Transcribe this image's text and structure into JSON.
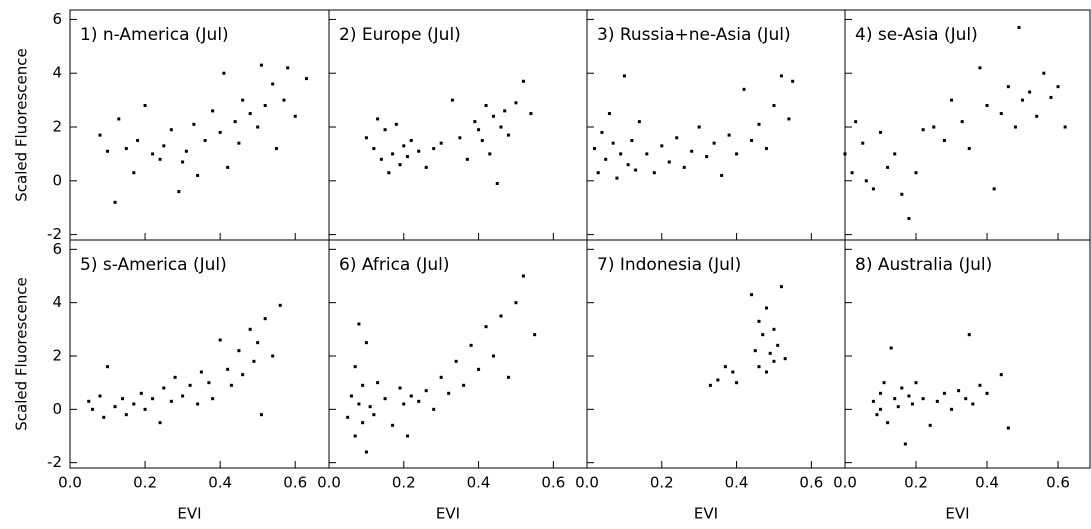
{
  "chart_data": [
    {
      "type": "scatter",
      "title": "1) n-America  (Jul)",
      "ylabel": "Scaled Fluorescence",
      "x": [
        0.08,
        0.1,
        0.12,
        0.13,
        0.15,
        0.17,
        0.18,
        0.2,
        0.22,
        0.24,
        0.25,
        0.27,
        0.29,
        0.3,
        0.31,
        0.33,
        0.34,
        0.36,
        0.38,
        0.4,
        0.41,
        0.42,
        0.44,
        0.45,
        0.46,
        0.48,
        0.5,
        0.51,
        0.52,
        0.54,
        0.55,
        0.57,
        0.58,
        0.6,
        0.63
      ],
      "y": [
        1.7,
        1.1,
        -0.8,
        2.3,
        1.2,
        0.3,
        1.5,
        2.8,
        1.0,
        0.8,
        1.3,
        1.9,
        -0.4,
        0.7,
        1.1,
        2.1,
        0.2,
        1.5,
        2.6,
        1.8,
        4.0,
        0.5,
        2.2,
        1.4,
        3.0,
        2.5,
        2.0,
        4.3,
        2.8,
        3.6,
        1.2,
        3.0,
        4.2,
        2.4,
        3.8
      ],
      "xlim": [
        0,
        0.69
      ],
      "ylim": [
        -2.2,
        6.35
      ],
      "xticks": [
        {
          "value": 0,
          "label": "0.0"
        },
        0.2,
        0.4,
        0.6
      ],
      "yticks": [
        -2,
        0,
        2,
        4,
        6
      ],
      "color": "#000000"
    },
    {
      "type": "scatter",
      "title": "2) Europe  (Jul)",
      "x": [
        0.1,
        0.12,
        0.13,
        0.14,
        0.15,
        0.16,
        0.17,
        0.18,
        0.19,
        0.2,
        0.21,
        0.22,
        0.24,
        0.26,
        0.28,
        0.3,
        0.33,
        0.35,
        0.37,
        0.39,
        0.4,
        0.41,
        0.42,
        0.43,
        0.44,
        0.45,
        0.46,
        0.47,
        0.48,
        0.5,
        0.52,
        0.54
      ],
      "y": [
        1.6,
        1.2,
        2.3,
        0.8,
        1.9,
        0.3,
        1.0,
        2.1,
        0.6,
        1.3,
        0.9,
        1.5,
        1.1,
        0.5,
        1.2,
        1.4,
        3.0,
        1.6,
        0.8,
        2.2,
        1.9,
        1.5,
        2.8,
        1.0,
        2.4,
        -0.1,
        2.0,
        2.6,
        1.7,
        2.9,
        3.7,
        2.5
      ],
      "xlim": [
        0,
        0.69
      ],
      "ylim": [
        -2.2,
        6.35
      ],
      "xticks": [
        {
          "value": 0,
          "label": "0.0"
        },
        0.2,
        0.4,
        0.6
      ],
      "yticks": [
        -2,
        0,
        2,
        4,
        6
      ],
      "color": "#000000"
    },
    {
      "type": "scatter",
      "title": "3) Russia+ne-Asia  (Jul)",
      "x": [
        0.02,
        0.03,
        0.04,
        0.05,
        0.06,
        0.07,
        0.08,
        0.09,
        0.1,
        0.11,
        0.12,
        0.13,
        0.14,
        0.16,
        0.18,
        0.2,
        0.22,
        0.24,
        0.26,
        0.28,
        0.3,
        0.32,
        0.34,
        0.36,
        0.38,
        0.4,
        0.42,
        0.44,
        0.46,
        0.48,
        0.5,
        0.52,
        0.54,
        0.55
      ],
      "y": [
        1.2,
        0.3,
        1.8,
        0.8,
        2.5,
        1.4,
        0.1,
        1.0,
        3.9,
        0.6,
        1.5,
        0.4,
        2.2,
        1.0,
        0.3,
        1.3,
        0.7,
        1.6,
        0.5,
        1.1,
        2.0,
        0.9,
        1.4,
        0.2,
        1.7,
        1.0,
        3.4,
        1.5,
        2.1,
        1.2,
        2.8,
        3.9,
        2.3,
        3.7
      ],
      "xlim": [
        0,
        0.69
      ],
      "ylim": [
        -2.2,
        6.35
      ],
      "xticks": [
        {
          "value": 0,
          "label": "0.0"
        },
        0.2,
        0.4,
        0.6
      ],
      "yticks": [
        -2,
        0,
        2,
        4,
        6
      ],
      "color": "#000000"
    },
    {
      "type": "scatter",
      "title": "4) se-Asia  (Jul)",
      "x": [
        0.0,
        0.02,
        0.03,
        0.05,
        0.06,
        0.08,
        0.1,
        0.12,
        0.14,
        0.16,
        0.18,
        0.2,
        0.22,
        0.25,
        0.28,
        0.3,
        0.33,
        0.35,
        0.38,
        0.4,
        0.42,
        0.44,
        0.46,
        0.48,
        0.49,
        0.5,
        0.52,
        0.54,
        0.56,
        0.58,
        0.6,
        0.62
      ],
      "y": [
        1.0,
        0.3,
        2.2,
        1.4,
        0.0,
        -0.3,
        1.8,
        0.5,
        1.0,
        -0.5,
        -1.4,
        0.3,
        1.9,
        2.0,
        1.5,
        3.0,
        2.2,
        1.2,
        4.2,
        2.8,
        -0.3,
        2.5,
        3.5,
        2.0,
        5.7,
        3.0,
        3.3,
        2.4,
        4.0,
        3.1,
        3.5,
        2.0
      ],
      "xlim": [
        0,
        0.69
      ],
      "ylim": [
        -2.2,
        6.35
      ],
      "xticks": [
        {
          "value": 0,
          "label": "0.0"
        },
        0.2,
        0.4,
        0.6
      ],
      "yticks": [
        -2,
        0,
        2,
        4,
        6
      ],
      "color": "#000000"
    },
    {
      "type": "scatter",
      "title": "5) s-America  (Jul)",
      "ylabel": "Scaled Fluorescence",
      "xlabel": "EVI",
      "x": [
        0.05,
        0.06,
        0.08,
        0.09,
        0.1,
        0.12,
        0.14,
        0.15,
        0.17,
        0.19,
        0.2,
        0.22,
        0.24,
        0.25,
        0.27,
        0.28,
        0.3,
        0.32,
        0.34,
        0.35,
        0.37,
        0.38,
        0.4,
        0.42,
        0.43,
        0.45,
        0.46,
        0.48,
        0.49,
        0.5,
        0.51,
        0.52,
        0.54,
        0.56
      ],
      "y": [
        0.3,
        0.0,
        0.5,
        -0.3,
        1.6,
        0.1,
        0.4,
        -0.2,
        0.2,
        0.6,
        0.0,
        0.4,
        -0.5,
        0.8,
        0.3,
        1.2,
        0.5,
        0.9,
        0.2,
        1.4,
        1.0,
        0.4,
        2.6,
        1.5,
        0.9,
        2.2,
        1.3,
        3.0,
        1.8,
        2.5,
        -0.2,
        3.4,
        2.0,
        3.9
      ],
      "xlim": [
        0,
        0.69
      ],
      "ylim": [
        -2.2,
        6.35
      ],
      "xticks": [
        {
          "value": 0,
          "label": "0.0"
        },
        0.2,
        0.4,
        0.6
      ],
      "yticks": [
        -2,
        0,
        2,
        4,
        6
      ],
      "color": "#000000"
    },
    {
      "type": "scatter",
      "title": "6) Africa  (Jul)",
      "xlabel": "EVI",
      "x": [
        0.05,
        0.06,
        0.07,
        0.07,
        0.08,
        0.08,
        0.09,
        0.09,
        0.1,
        0.1,
        0.11,
        0.12,
        0.13,
        0.15,
        0.17,
        0.19,
        0.2,
        0.21,
        0.22,
        0.24,
        0.26,
        0.28,
        0.3,
        0.32,
        0.34,
        0.36,
        0.38,
        0.4,
        0.42,
        0.44,
        0.46,
        0.48,
        0.5,
        0.52,
        0.55
      ],
      "y": [
        -0.3,
        0.5,
        -1.0,
        1.6,
        0.2,
        3.2,
        -0.5,
        0.9,
        -1.6,
        2.5,
        0.1,
        -0.2,
        1.0,
        0.4,
        -0.6,
        0.8,
        0.2,
        -1.0,
        0.5,
        0.3,
        0.7,
        0.0,
        1.2,
        0.6,
        1.8,
        0.9,
        2.4,
        1.5,
        3.1,
        2.0,
        3.5,
        1.2,
        4.0,
        5.0,
        2.8
      ],
      "xlim": [
        0,
        0.69
      ],
      "ylim": [
        -2.2,
        6.35
      ],
      "xticks": [
        {
          "value": 0,
          "label": "0.0"
        },
        0.2,
        0.4,
        0.6
      ],
      "yticks": [
        -2,
        0,
        2,
        4,
        6
      ],
      "color": "#000000"
    },
    {
      "type": "scatter",
      "title": "7) Indonesia  (Jul)",
      "xlabel": "EVI",
      "x": [
        0.33,
        0.35,
        0.37,
        0.39,
        0.4,
        0.44,
        0.45,
        0.46,
        0.46,
        0.47,
        0.48,
        0.48,
        0.49,
        0.5,
        0.5,
        0.51,
        0.52,
        0.53
      ],
      "y": [
        0.9,
        1.1,
        1.6,
        1.4,
        1.0,
        4.3,
        2.2,
        3.3,
        1.6,
        2.8,
        3.8,
        1.4,
        2.1,
        3.0,
        1.8,
        2.4,
        4.6,
        1.9
      ],
      "xlim": [
        0,
        0.69
      ],
      "ylim": [
        -2.2,
        6.35
      ],
      "xticks": [
        {
          "value": 0,
          "label": "0.0"
        },
        0.2,
        0.4,
        0.6
      ],
      "yticks": [
        -2,
        0,
        2,
        4,
        6
      ],
      "color": "#000000"
    },
    {
      "type": "scatter",
      "title": "8) Australia  (Jul)",
      "xlabel": "EVI",
      "x": [
        0.08,
        0.09,
        0.1,
        0.1,
        0.11,
        0.12,
        0.13,
        0.14,
        0.15,
        0.16,
        0.17,
        0.18,
        0.19,
        0.2,
        0.22,
        0.24,
        0.26,
        0.28,
        0.3,
        0.32,
        0.34,
        0.35,
        0.36,
        0.38,
        0.4,
        0.44,
        0.46
      ],
      "y": [
        0.3,
        -0.2,
        0.6,
        0.0,
        1.0,
        -0.5,
        2.3,
        0.4,
        0.1,
        0.8,
        -1.3,
        0.5,
        0.2,
        1.0,
        0.4,
        -0.6,
        0.3,
        0.6,
        0.0,
        0.7,
        0.4,
        2.8,
        0.2,
        0.9,
        0.6,
        1.3,
        -0.7
      ],
      "xlim": [
        0,
        0.69
      ],
      "ylim": [
        -2.2,
        6.35
      ],
      "xticks": [
        {
          "value": 0,
          "label": "0.0"
        },
        0.2,
        0.4,
        0.6
      ],
      "yticks": [
        -2,
        0,
        2,
        4,
        6
      ],
      "color": "#000000"
    }
  ]
}
